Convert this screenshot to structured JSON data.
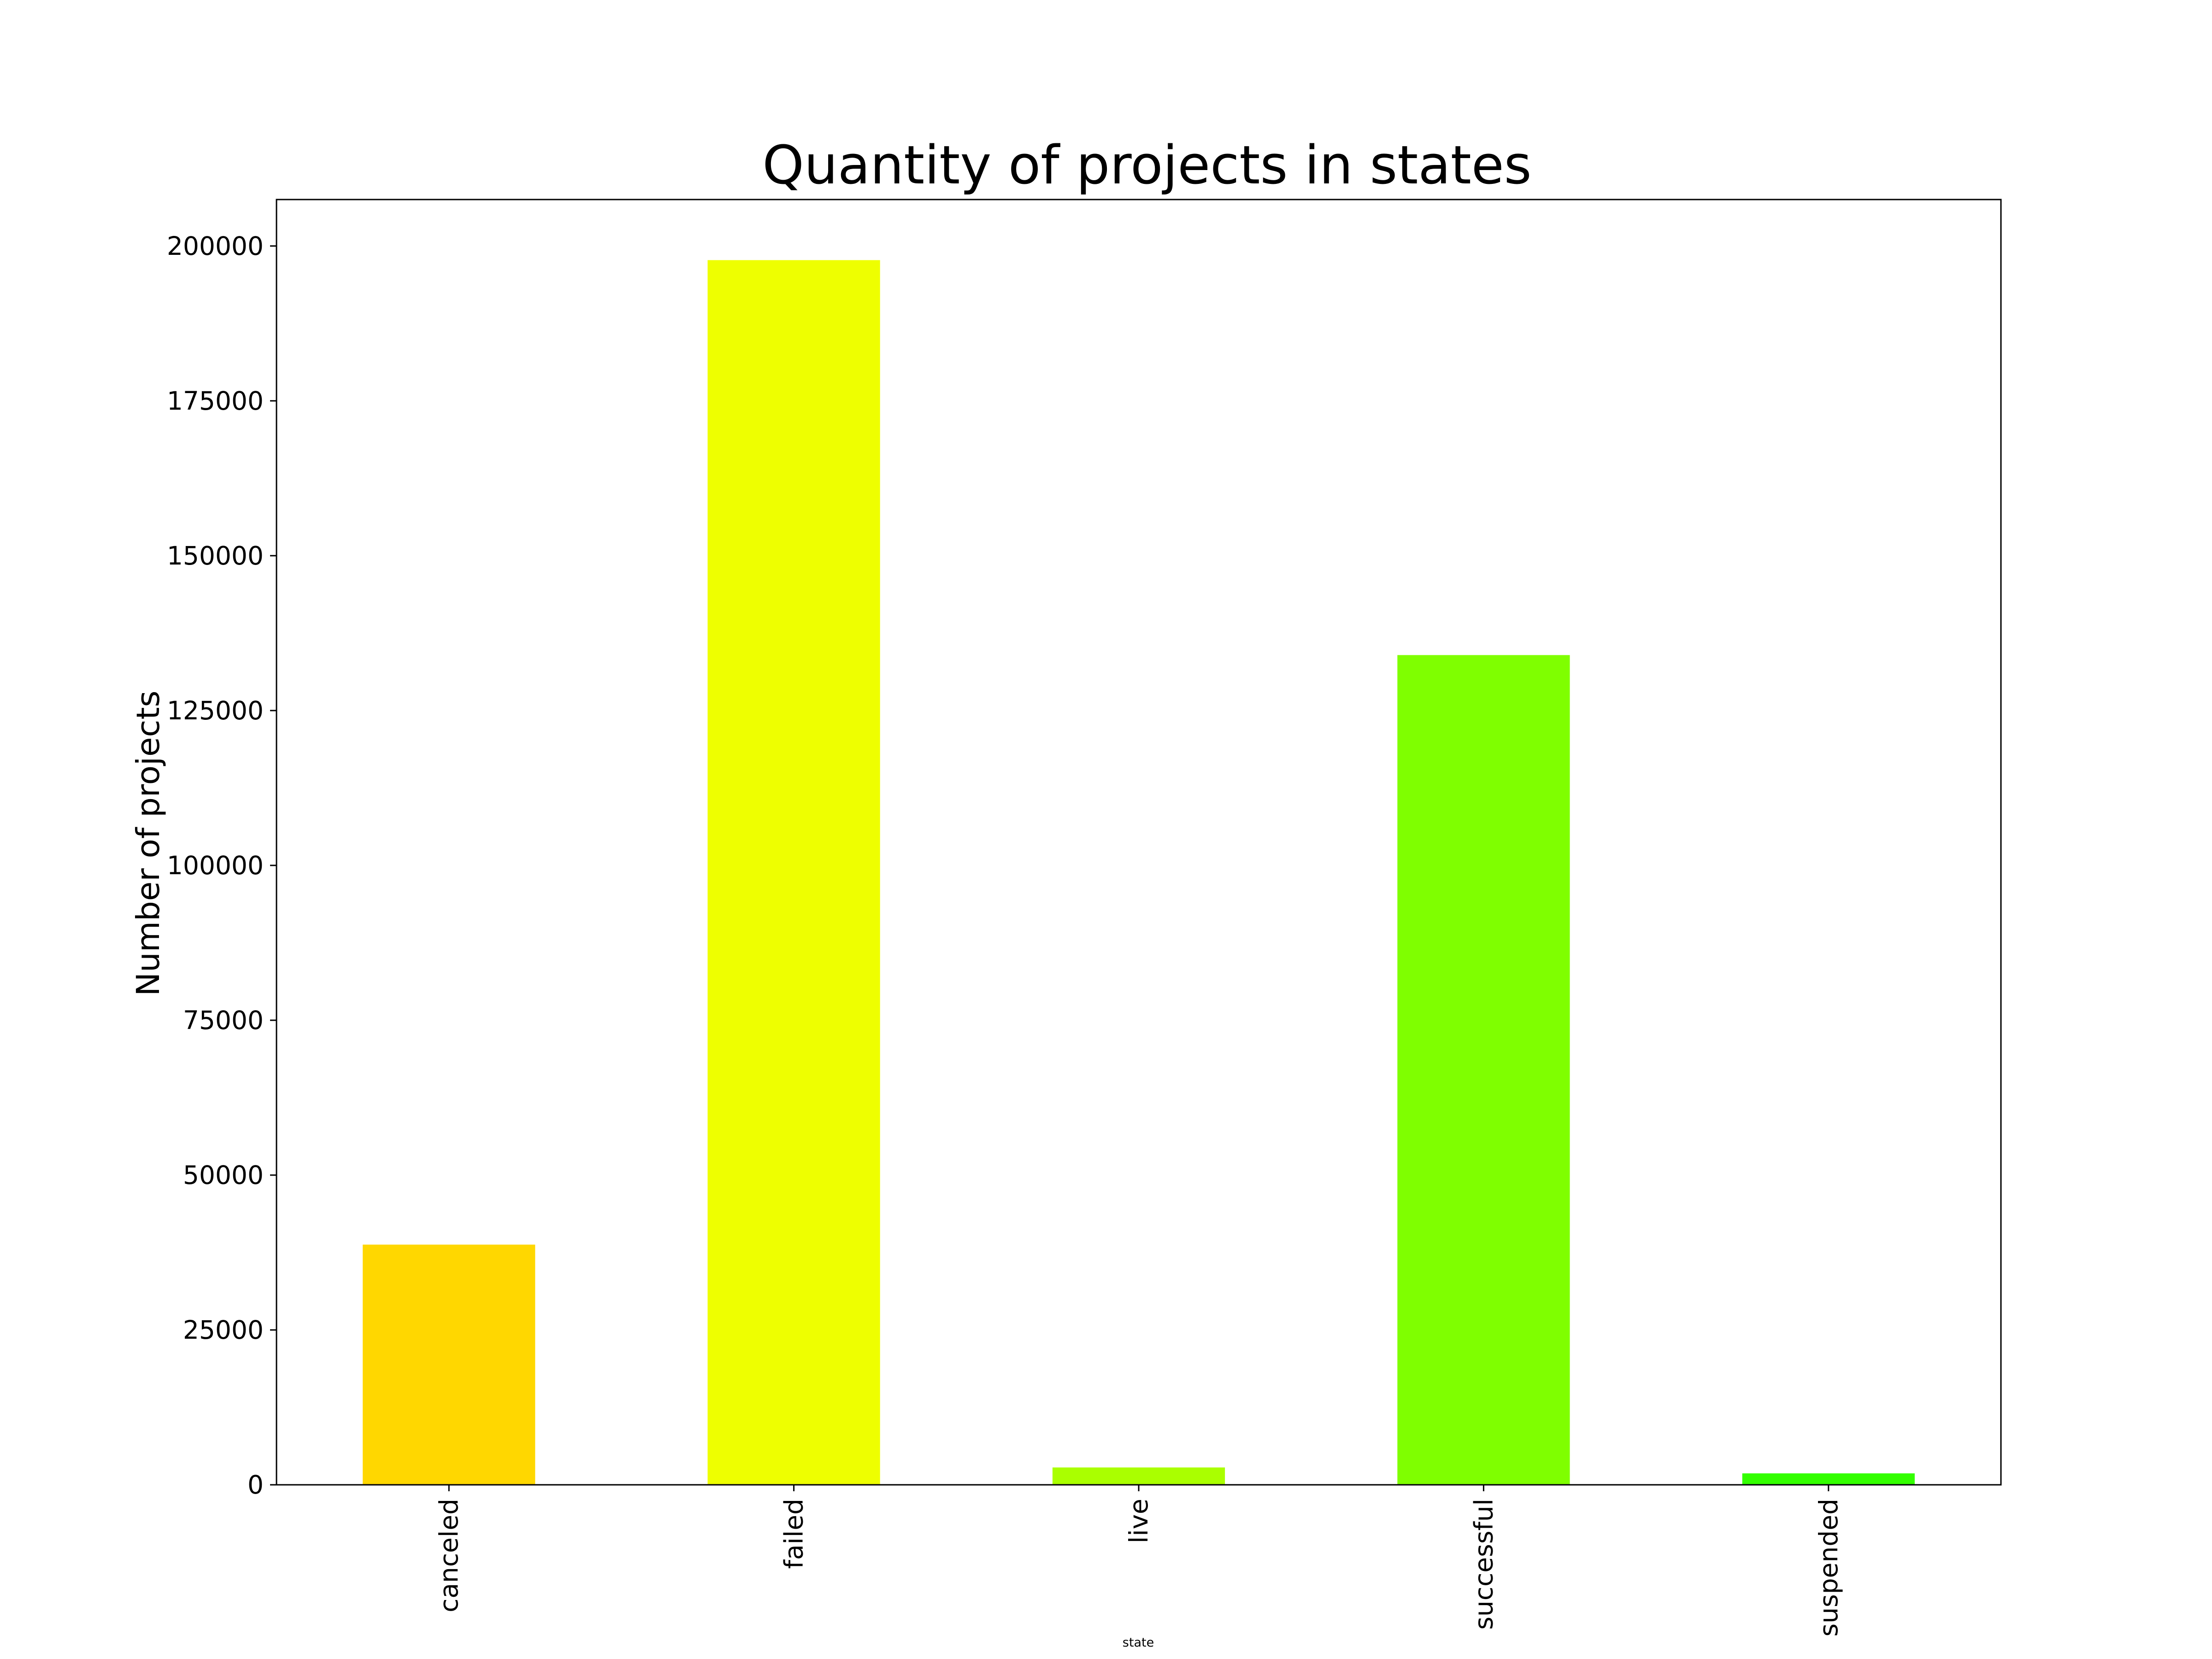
{
  "chart_data": {
    "type": "bar",
    "title": "Quantity of projects in states",
    "xlabel": "state",
    "ylabel": "Number of projects",
    "categories": [
      "canceled",
      "failed",
      "live",
      "successful",
      "suspended"
    ],
    "values": [
      38779,
      197719,
      2799,
      133956,
      1846
    ],
    "colors": [
      "#ffd700",
      "#eeff00",
      "#aaff00",
      "#7fff00",
      "#33ff00"
    ],
    "ylim": [
      0,
      207500
    ],
    "yticks": [
      0,
      25000,
      50000,
      75000,
      100000,
      125000,
      150000,
      175000,
      200000
    ],
    "grid": false
  }
}
